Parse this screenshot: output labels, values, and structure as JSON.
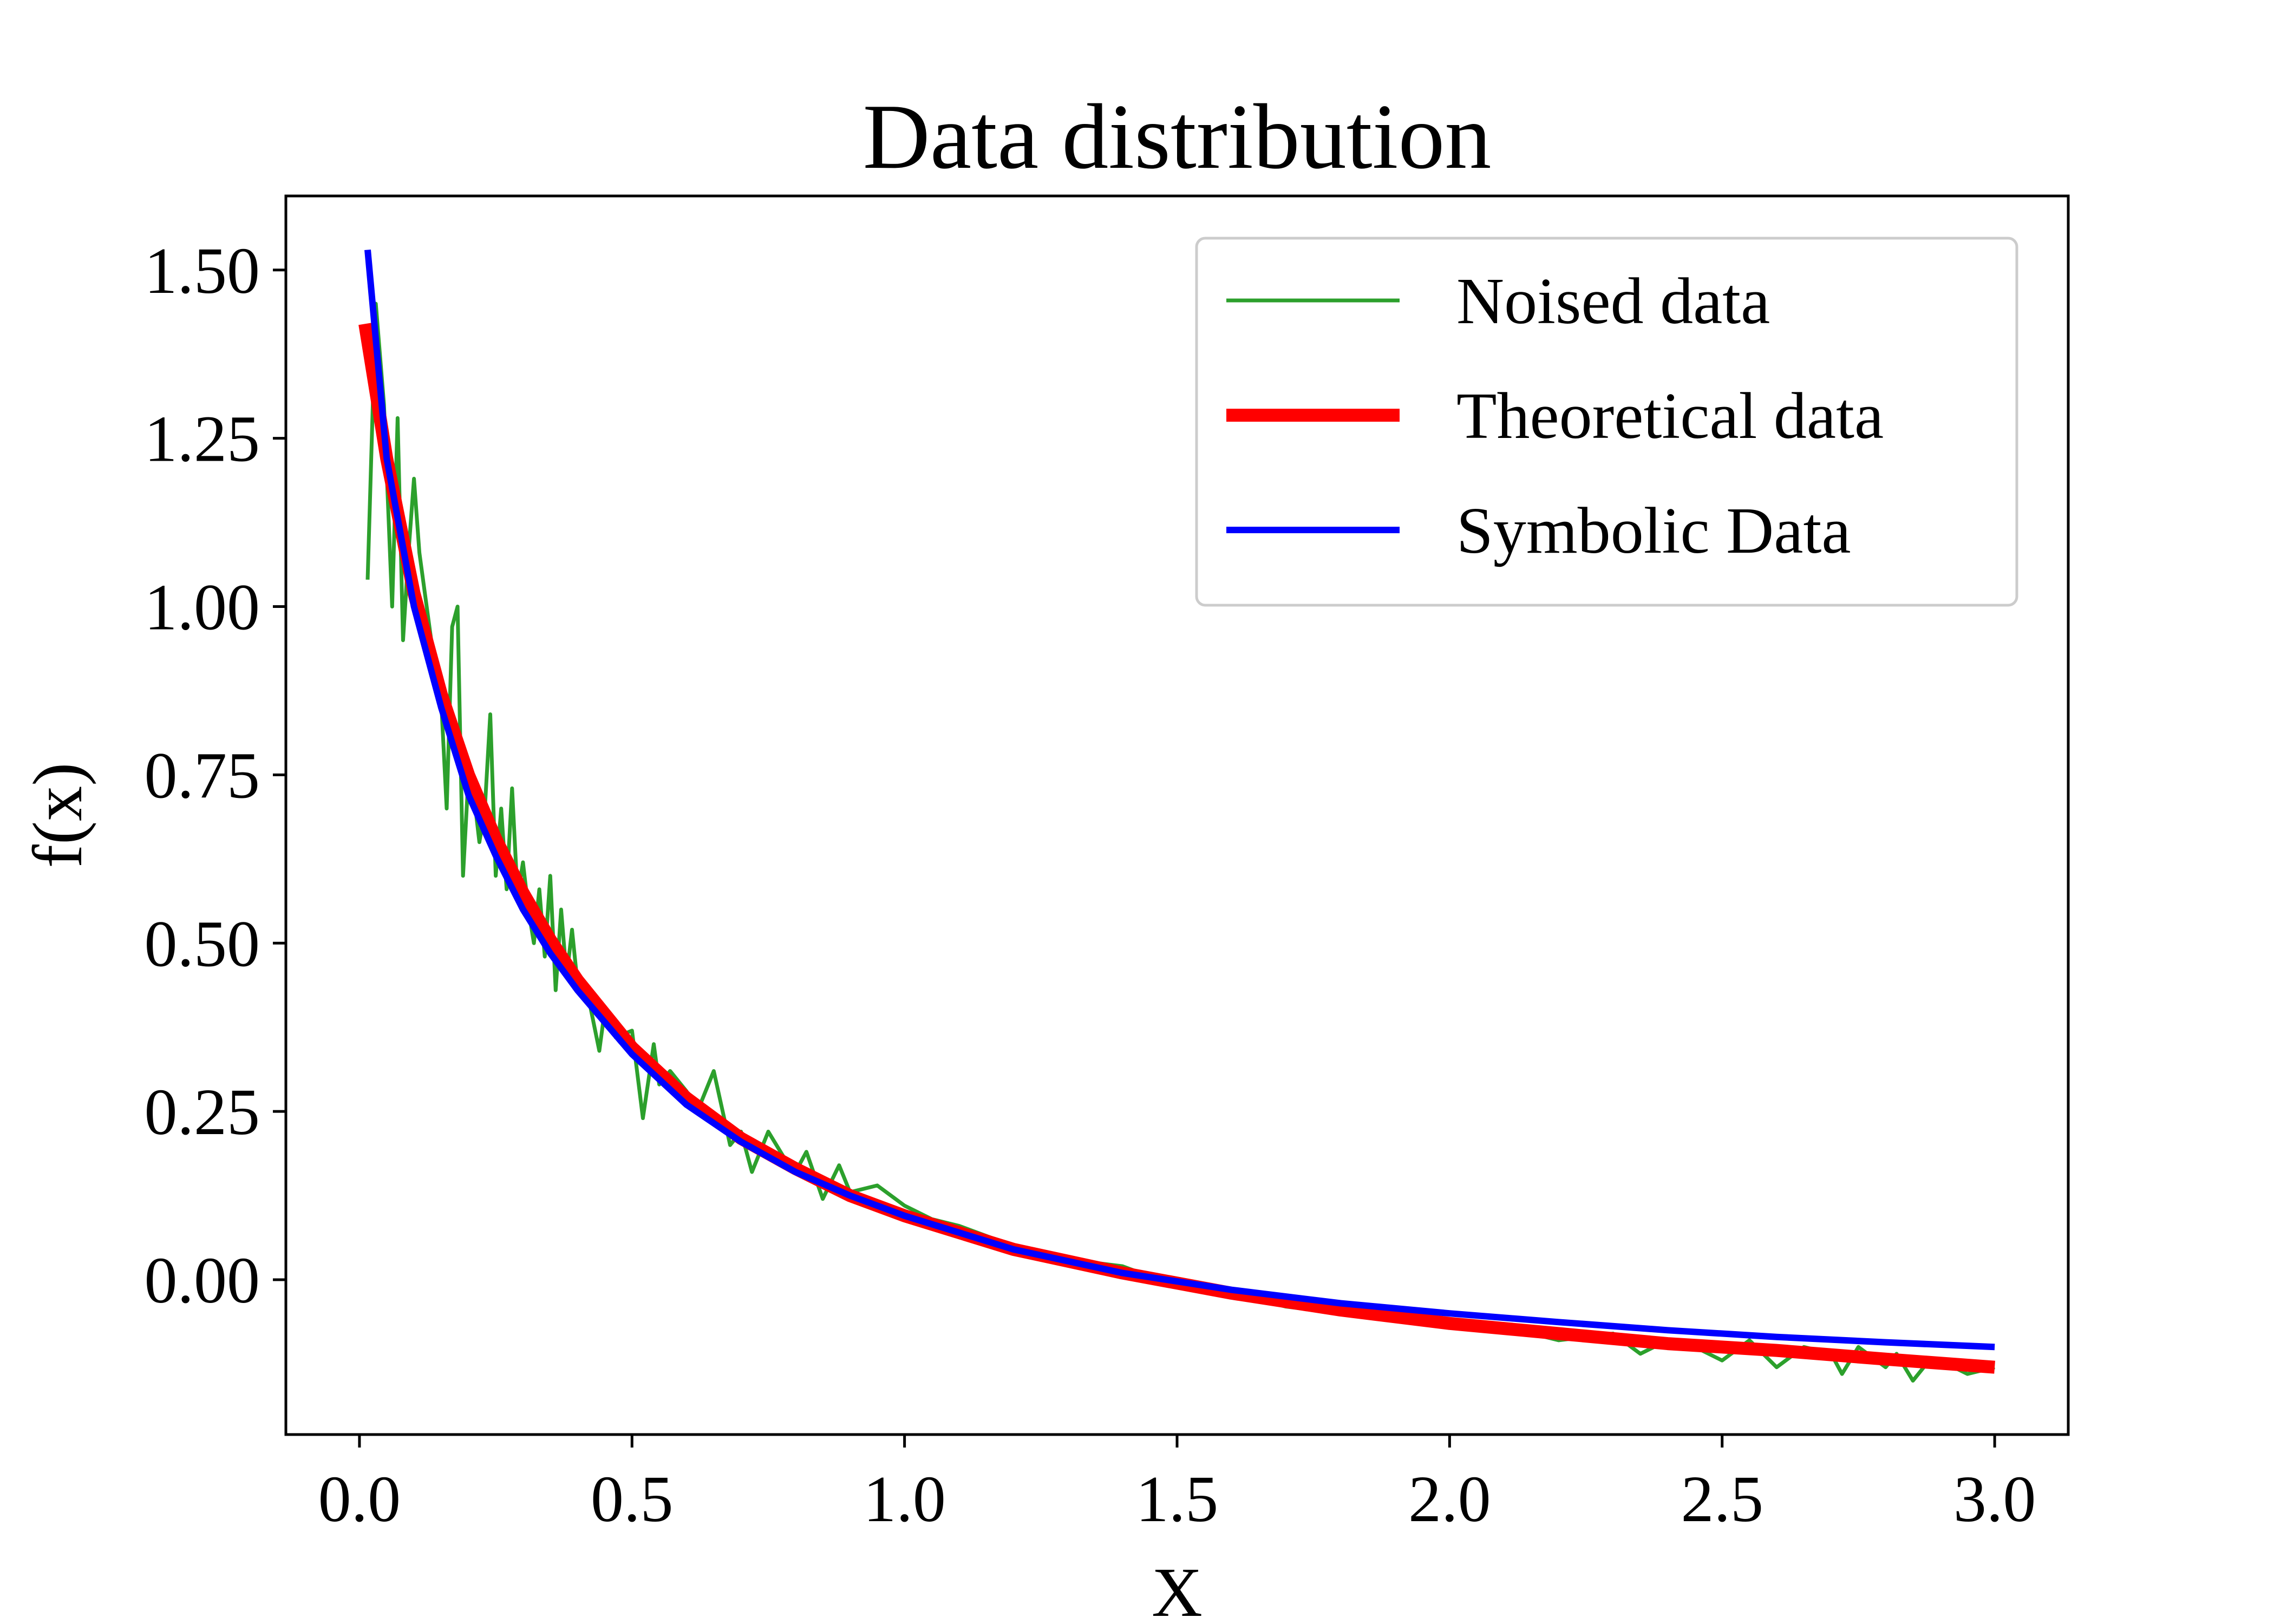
{
  "chart_data": {
    "type": "line",
    "title": "Data distribution",
    "xlabel": "X",
    "ylabel": "f(x)",
    "xlim": [
      -0.135,
      3.135
    ],
    "ylim": [
      -0.23,
      1.61
    ],
    "xticks": [
      0.0,
      0.5,
      1.0,
      1.5,
      2.0,
      2.5,
      3.0
    ],
    "xtick_labels": [
      "0.0",
      "0.5",
      "1.0",
      "1.5",
      "2.0",
      "2.5",
      "3.0"
    ],
    "yticks": [
      0.0,
      0.25,
      0.5,
      0.75,
      1.0,
      1.25,
      1.5
    ],
    "ytick_labels": [
      "0.00",
      "0.25",
      "0.50",
      "0.75",
      "1.00",
      "1.25",
      "1.50"
    ],
    "grid": false,
    "legend_position": "top-right",
    "series": [
      {
        "name": "Noised data",
        "color": "#2ca02c",
        "x": [
          0.015,
          0.03,
          0.045,
          0.06,
          0.07,
          0.08,
          0.09,
          0.1,
          0.11,
          0.12,
          0.13,
          0.14,
          0.15,
          0.16,
          0.17,
          0.18,
          0.19,
          0.2,
          0.21,
          0.22,
          0.23,
          0.24,
          0.25,
          0.26,
          0.27,
          0.28,
          0.29,
          0.3,
          0.31,
          0.32,
          0.33,
          0.34,
          0.35,
          0.36,
          0.37,
          0.38,
          0.39,
          0.4,
          0.42,
          0.44,
          0.45,
          0.47,
          0.5,
          0.52,
          0.54,
          0.55,
          0.57,
          0.6,
          0.62,
          0.65,
          0.68,
          0.7,
          0.72,
          0.75,
          0.78,
          0.8,
          0.82,
          0.85,
          0.88,
          0.9,
          0.95,
          1.0,
          1.05,
          1.1,
          1.2,
          1.3,
          1.4,
          1.5,
          1.6,
          1.7,
          1.8,
          1.9,
          2.0,
          2.1,
          2.2,
          2.3,
          2.35,
          2.4,
          2.45,
          2.5,
          2.55,
          2.6,
          2.65,
          2.7,
          2.72,
          2.75,
          2.8,
          2.82,
          2.85,
          2.88,
          2.9,
          2.95,
          3.0
        ],
        "y": [
          1.04,
          1.45,
          1.3,
          1.0,
          1.28,
          0.95,
          1.08,
          1.19,
          1.08,
          1.02,
          0.96,
          0.9,
          0.86,
          0.7,
          0.97,
          1.0,
          0.6,
          0.75,
          0.72,
          0.65,
          0.7,
          0.84,
          0.6,
          0.7,
          0.58,
          0.73,
          0.57,
          0.62,
          0.55,
          0.5,
          0.58,
          0.48,
          0.6,
          0.43,
          0.55,
          0.45,
          0.52,
          0.44,
          0.42,
          0.34,
          0.4,
          0.36,
          0.37,
          0.24,
          0.35,
          0.29,
          0.31,
          0.28,
          0.25,
          0.31,
          0.2,
          0.22,
          0.16,
          0.22,
          0.18,
          0.16,
          0.19,
          0.12,
          0.17,
          0.13,
          0.14,
          0.11,
          0.09,
          0.08,
          0.05,
          0.03,
          0.02,
          -0.01,
          -0.02,
          -0.04,
          -0.05,
          -0.06,
          -0.06,
          -0.07,
          -0.09,
          -0.08,
          -0.11,
          -0.09,
          -0.1,
          -0.12,
          -0.09,
          -0.13,
          -0.1,
          -0.11,
          -0.14,
          -0.1,
          -0.13,
          -0.11,
          -0.15,
          -0.12,
          -0.12,
          -0.14,
          -0.13
        ]
      },
      {
        "name": "Theoretical data",
        "color": "#ff0000",
        "x": [
          0.01,
          0.05,
          0.1,
          0.15,
          0.2,
          0.25,
          0.3,
          0.35,
          0.4,
          0.5,
          0.6,
          0.7,
          0.8,
          0.9,
          1.0,
          1.2,
          1.4,
          1.6,
          1.8,
          2.0,
          2.2,
          2.4,
          2.6,
          2.8,
          3.0
        ],
        "y": [
          1.42,
          1.22,
          1.02,
          0.87,
          0.75,
          0.655,
          0.575,
          0.505,
          0.445,
          0.345,
          0.27,
          0.21,
          0.165,
          0.125,
          0.095,
          0.045,
          0.01,
          -0.02,
          -0.045,
          -0.065,
          -0.08,
          -0.095,
          -0.105,
          -0.118,
          -0.13
        ]
      },
      {
        "name": "Symbolic Data",
        "color": "#0000ff",
        "x": [
          0.015,
          0.05,
          0.1,
          0.15,
          0.2,
          0.25,
          0.3,
          0.35,
          0.4,
          0.5,
          0.6,
          0.7,
          0.8,
          0.9,
          1.0,
          1.2,
          1.4,
          1.6,
          1.8,
          2.0,
          2.2,
          2.4,
          2.6,
          2.8,
          3.0
        ],
        "y": [
          1.53,
          1.22,
          1.0,
          0.85,
          0.72,
          0.63,
          0.55,
          0.485,
          0.43,
          0.335,
          0.26,
          0.205,
          0.16,
          0.125,
          0.095,
          0.045,
          0.01,
          -0.015,
          -0.035,
          -0.05,
          -0.063,
          -0.075,
          -0.085,
          -0.093,
          -0.1
        ]
      }
    ]
  }
}
